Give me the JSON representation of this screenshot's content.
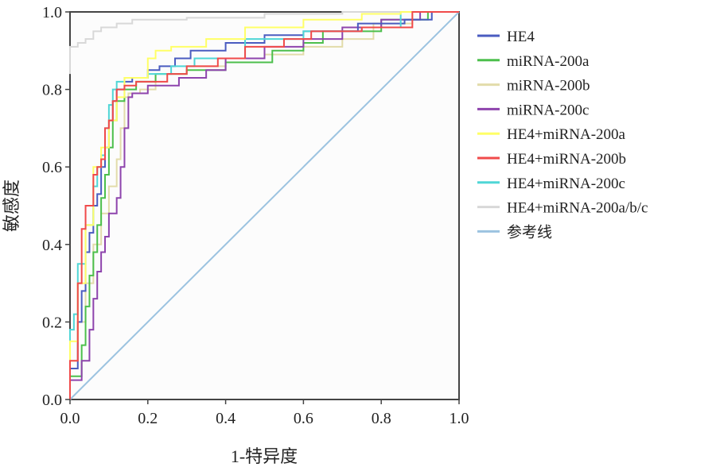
{
  "chart_data": {
    "type": "line",
    "title": "",
    "xlabel": "1-特异度",
    "ylabel": "敏感度",
    "xlim": [
      0,
      1
    ],
    "ylim": [
      0,
      1
    ],
    "xticks": [
      "0.0",
      "0.2",
      "0.4",
      "0.6",
      "0.8",
      "1.0"
    ],
    "yticks": [
      "0.0",
      "0.2",
      "0.4",
      "0.6",
      "0.8",
      "1.0"
    ],
    "grid": false,
    "legend_position": "right",
    "series": [
      {
        "name": "HE4",
        "color": "#4a5cc0",
        "step": true,
        "points": [
          [
            0,
            0
          ],
          [
            0,
            0.03
          ],
          [
            0.02,
            0.08
          ],
          [
            0.03,
            0.2
          ],
          [
            0.04,
            0.28
          ],
          [
            0.05,
            0.38
          ],
          [
            0.06,
            0.43
          ],
          [
            0.07,
            0.5
          ],
          [
            0.08,
            0.53
          ],
          [
            0.09,
            0.6
          ],
          [
            0.1,
            0.65
          ],
          [
            0.11,
            0.72
          ],
          [
            0.12,
            0.77
          ],
          [
            0.14,
            0.8
          ],
          [
            0.16,
            0.82
          ],
          [
            0.2,
            0.83
          ],
          [
            0.23,
            0.85
          ],
          [
            0.27,
            0.86
          ],
          [
            0.31,
            0.88
          ],
          [
            0.4,
            0.9
          ],
          [
            0.5,
            0.92
          ],
          [
            0.6,
            0.94
          ],
          [
            0.74,
            0.95
          ],
          [
            0.86,
            0.97
          ],
          [
            0.93,
            0.98
          ],
          [
            1,
            1
          ]
        ]
      },
      {
        "name": "miRNA-200a",
        "color": "#4cbf4c",
        "step": true,
        "points": [
          [
            0,
            0
          ],
          [
            0,
            0.03
          ],
          [
            0.03,
            0.06
          ],
          [
            0.04,
            0.14
          ],
          [
            0.05,
            0.24
          ],
          [
            0.06,
            0.32
          ],
          [
            0.07,
            0.38
          ],
          [
            0.08,
            0.45
          ],
          [
            0.09,
            0.52
          ],
          [
            0.1,
            0.58
          ],
          [
            0.11,
            0.65
          ],
          [
            0.12,
            0.72
          ],
          [
            0.14,
            0.77
          ],
          [
            0.17,
            0.8
          ],
          [
            0.22,
            0.82
          ],
          [
            0.3,
            0.84
          ],
          [
            0.4,
            0.85
          ],
          [
            0.52,
            0.87
          ],
          [
            0.6,
            0.9
          ],
          [
            0.65,
            0.92
          ],
          [
            0.8,
            0.95
          ],
          [
            0.92,
            0.98
          ],
          [
            1,
            1
          ]
        ]
      },
      {
        "name": "miRNA-200b",
        "color": "#e2dcaa",
        "step": true,
        "points": [
          [
            0,
            0
          ],
          [
            0,
            0.04
          ],
          [
            0.02,
            0.1
          ],
          [
            0.04,
            0.2
          ],
          [
            0.06,
            0.3
          ],
          [
            0.08,
            0.4
          ],
          [
            0.1,
            0.48
          ],
          [
            0.12,
            0.55
          ],
          [
            0.13,
            0.62
          ],
          [
            0.14,
            0.7
          ],
          [
            0.15,
            0.78
          ],
          [
            0.18,
            0.79
          ],
          [
            0.22,
            0.8
          ],
          [
            0.3,
            0.84
          ],
          [
            0.4,
            0.86
          ],
          [
            0.5,
            0.88
          ],
          [
            0.6,
            0.89
          ],
          [
            0.7,
            0.91
          ],
          [
            0.78,
            0.93
          ],
          [
            0.88,
            0.97
          ],
          [
            1,
            1
          ]
        ]
      },
      {
        "name": "miRNA-200c",
        "color": "#8e44ad",
        "step": true,
        "points": [
          [
            0,
            0
          ],
          [
            0,
            0.02
          ],
          [
            0.03,
            0.05
          ],
          [
            0.05,
            0.1
          ],
          [
            0.06,
            0.18
          ],
          [
            0.07,
            0.26
          ],
          [
            0.08,
            0.33
          ],
          [
            0.09,
            0.38
          ],
          [
            0.1,
            0.42
          ],
          [
            0.12,
            0.48
          ],
          [
            0.13,
            0.52
          ],
          [
            0.14,
            0.6
          ],
          [
            0.15,
            0.7
          ],
          [
            0.16,
            0.78
          ],
          [
            0.2,
            0.79
          ],
          [
            0.28,
            0.81
          ],
          [
            0.35,
            0.83
          ],
          [
            0.4,
            0.85
          ],
          [
            0.5,
            0.88
          ],
          [
            0.6,
            0.91
          ],
          [
            0.7,
            0.93
          ],
          [
            0.8,
            0.96
          ],
          [
            0.9,
            0.98
          ],
          [
            1,
            1
          ]
        ]
      },
      {
        "name": "HE4+miRNA-200a",
        "color": "#ffff66",
        "step": true,
        "points": [
          [
            0,
            0
          ],
          [
            0,
            0.08
          ],
          [
            0.02,
            0.15
          ],
          [
            0.04,
            0.3
          ],
          [
            0.06,
            0.45
          ],
          [
            0.08,
            0.6
          ],
          [
            0.1,
            0.65
          ],
          [
            0.12,
            0.72
          ],
          [
            0.14,
            0.78
          ],
          [
            0.2,
            0.83
          ],
          [
            0.22,
            0.88
          ],
          [
            0.26,
            0.9
          ],
          [
            0.35,
            0.91
          ],
          [
            0.45,
            0.93
          ],
          [
            0.6,
            0.96
          ],
          [
            0.75,
            0.98
          ],
          [
            0.85,
            0.995
          ],
          [
            1,
            1
          ]
        ]
      },
      {
        "name": "HE4+miRNA-200b",
        "color": "#f04a4a",
        "step": true,
        "points": [
          [
            0,
            0
          ],
          [
            0,
            0.05
          ],
          [
            0.02,
            0.1
          ],
          [
            0.03,
            0.3
          ],
          [
            0.04,
            0.44
          ],
          [
            0.06,
            0.5
          ],
          [
            0.07,
            0.58
          ],
          [
            0.08,
            0.6
          ],
          [
            0.09,
            0.62
          ],
          [
            0.1,
            0.7
          ],
          [
            0.11,
            0.72
          ],
          [
            0.12,
            0.77
          ],
          [
            0.14,
            0.8
          ],
          [
            0.17,
            0.81
          ],
          [
            0.25,
            0.82
          ],
          [
            0.3,
            0.84
          ],
          [
            0.38,
            0.86
          ],
          [
            0.45,
            0.88
          ],
          [
            0.55,
            0.91
          ],
          [
            0.62,
            0.93
          ],
          [
            0.75,
            0.95
          ],
          [
            0.88,
            0.96
          ],
          [
            1,
            1
          ]
        ]
      },
      {
        "name": "HE4+miRNA-200c",
        "color": "#4fd6d6",
        "step": true,
        "points": [
          [
            0,
            0
          ],
          [
            0,
            0.08
          ],
          [
            0.01,
            0.18
          ],
          [
            0.02,
            0.22
          ],
          [
            0.04,
            0.35
          ],
          [
            0.06,
            0.45
          ],
          [
            0.07,
            0.55
          ],
          [
            0.08,
            0.6
          ],
          [
            0.09,
            0.63
          ],
          [
            0.1,
            0.7
          ],
          [
            0.11,
            0.76
          ],
          [
            0.12,
            0.8
          ],
          [
            0.14,
            0.82
          ],
          [
            0.2,
            0.83
          ],
          [
            0.26,
            0.84
          ],
          [
            0.32,
            0.86
          ],
          [
            0.45,
            0.88
          ],
          [
            0.6,
            0.93
          ],
          [
            0.75,
            0.95
          ],
          [
            0.85,
            0.96
          ],
          [
            1,
            1
          ]
        ]
      },
      {
        "name": "HE4+miRNA-200a/b/c",
        "color": "#d8d8d8",
        "step": true,
        "points": [
          [
            0,
            0.84
          ],
          [
            0,
            0.9
          ],
          [
            0.02,
            0.91
          ],
          [
            0.04,
            0.92
          ],
          [
            0.06,
            0.93
          ],
          [
            0.08,
            0.95
          ],
          [
            0.12,
            0.96
          ],
          [
            0.16,
            0.97
          ],
          [
            0.3,
            0.98
          ],
          [
            0.5,
            0.985
          ],
          [
            0.7,
            0.995
          ],
          [
            0.9,
            1
          ],
          [
            1,
            1
          ]
        ]
      },
      {
        "name": "参考线",
        "color": "#9cc3e0",
        "step": false,
        "points": [
          [
            0,
            0
          ],
          [
            1,
            1
          ]
        ]
      }
    ]
  }
}
